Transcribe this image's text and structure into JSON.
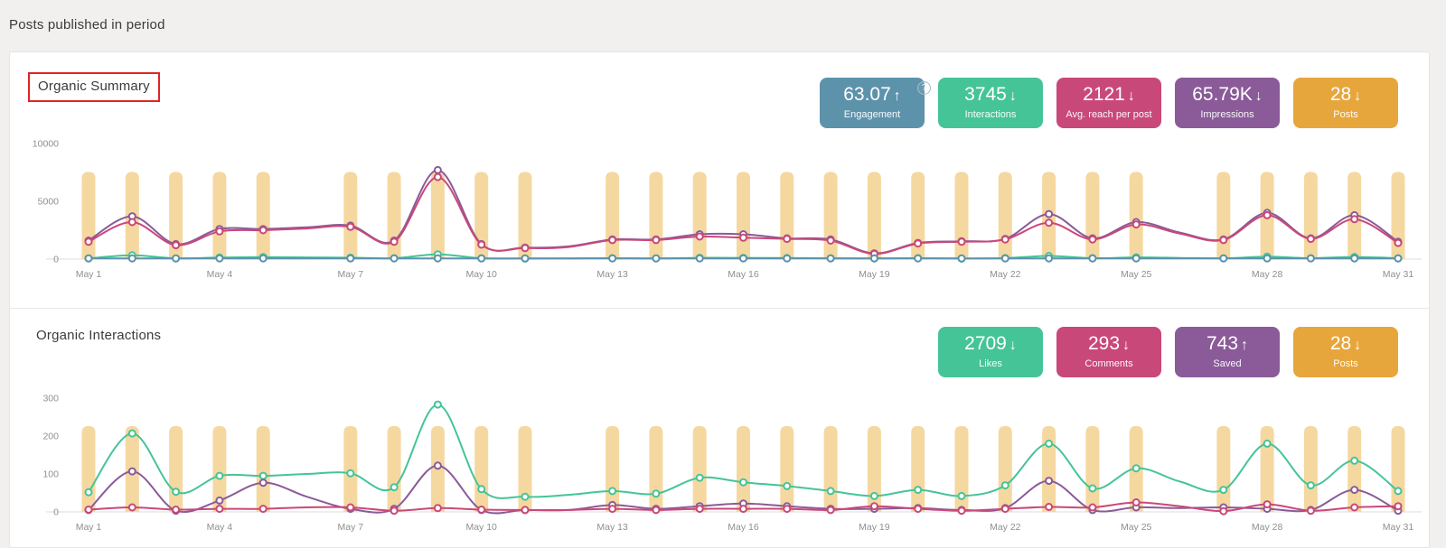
{
  "page": {
    "title": "Posts published in period"
  },
  "icons": {
    "help": "?",
    "trend_up": "↑",
    "trend_down": "↓"
  },
  "colors": {
    "blue": "#5d92ab",
    "green": "#45c498",
    "pink": "#c9487a",
    "purple": "#8a5b98",
    "orange": "#e7a63c",
    "bar": "#f5d8a0",
    "annotation": "#e02424",
    "axis": "#dddddb",
    "tick_text": "#8f8f8f"
  },
  "sections": [
    {
      "title": "Organic Summary",
      "highlighted": true,
      "kpis": [
        {
          "value": "63.07",
          "arrow": "↑",
          "label": "Engagement",
          "color": "blue",
          "help": true
        },
        {
          "value": "3745",
          "arrow": "↓",
          "label": "Interactions",
          "color": "green"
        },
        {
          "value": "2121",
          "arrow": "↓",
          "label": "Avg. reach per post",
          "color": "pink"
        },
        {
          "value": "65.79K",
          "arrow": "↓",
          "label": "Impressions",
          "color": "purple"
        },
        {
          "value": "28",
          "arrow": "↓",
          "label": "Posts",
          "color": "orange"
        }
      ]
    },
    {
      "title": "Organic Interactions",
      "highlighted": false,
      "kpis": [
        {
          "value": "2709",
          "arrow": "↓",
          "label": "Likes",
          "color": "green"
        },
        {
          "value": "293",
          "arrow": "↓",
          "label": "Comments",
          "color": "pink"
        },
        {
          "value": "743",
          "arrow": "↑",
          "label": "Saved",
          "color": "purple"
        },
        {
          "value": "28",
          "arrow": "↓",
          "label": "Posts",
          "color": "orange"
        }
      ]
    }
  ],
  "chart_data": [
    {
      "type": "line+bar",
      "title": "Organic Summary",
      "ylim": [
        0,
        10000
      ],
      "yticks": [
        0,
        5000,
        10000
      ],
      "grid": false,
      "tick_every": 3,
      "x_labels": [
        "May 1",
        "May 2",
        "May 3",
        "May 4",
        "May 5",
        "May 6",
        "May 7",
        "May 8",
        "May 9",
        "May 10",
        "May 11",
        "May 12",
        "May 13",
        "May 14",
        "May 15",
        "May 16",
        "May 17",
        "May 18",
        "May 19",
        "May 20",
        "May 21",
        "May 22",
        "May 23",
        "May 24",
        "May 25",
        "May 26",
        "May 27",
        "May 28",
        "May 29",
        "May 30",
        "May 31"
      ],
      "bars": {
        "label": "Posts",
        "posts_per_day": 1,
        "days_with_posts": [
          1,
          2,
          3,
          4,
          5,
          7,
          8,
          9,
          10,
          11,
          13,
          14,
          15,
          16,
          17,
          18,
          19,
          20,
          21,
          22,
          23,
          24,
          25,
          27,
          28,
          29,
          30,
          31
        ],
        "bar_height_frac": 0.755
      },
      "series": [
        {
          "name": "Impressions",
          "color_key": "purple",
          "values": [
            1600,
            3700,
            1300,
            2600,
            2600,
            2750,
            2900,
            1600,
            7700,
            1300,
            1000,
            1100,
            1700,
            1700,
            2150,
            2150,
            1800,
            1700,
            500,
            1400,
            1550,
            1750,
            3900,
            1800,
            3200,
            2300,
            1700,
            4000,
            1800,
            3800,
            1500
          ]
        },
        {
          "name": "Reach",
          "color_key": "pink",
          "values": [
            1500,
            3200,
            1200,
            2400,
            2500,
            2650,
            2800,
            1500,
            7100,
            1250,
            950,
            1050,
            1650,
            1650,
            1950,
            1850,
            1750,
            1600,
            450,
            1350,
            1500,
            1700,
            3150,
            1700,
            3000,
            2200,
            1650,
            3800,
            1750,
            3450,
            1400
          ]
        },
        {
          "name": "Interactions",
          "color_key": "green",
          "values": [
            63,
            326,
            62,
            133,
            180,
            152,
            122,
            76,
            415,
            71,
            50,
            55,
            81,
            61,
            113,
            108,
            91,
            68,
            65,
            76,
            50,
            88,
            275,
            79,
            152,
            105,
            72,
            208,
            78,
            189,
            73
          ]
        },
        {
          "name": "Engagement",
          "color_key": "blue",
          "values": [
            63,
            63,
            63,
            63,
            63,
            63,
            63,
            63,
            63,
            63,
            63,
            63,
            63,
            63,
            63,
            63,
            63,
            63,
            63,
            63,
            63,
            63,
            63,
            63,
            63,
            63,
            63,
            63,
            63,
            63,
            63
          ]
        }
      ]
    },
    {
      "type": "line+bar",
      "title": "Organic Interactions",
      "ylim": [
        0,
        300
      ],
      "yticks": [
        0,
        100,
        200,
        300
      ],
      "grid": false,
      "tick_every": 3,
      "x_labels": [
        "May 1",
        "May 2",
        "May 3",
        "May 4",
        "May 5",
        "May 6",
        "May 7",
        "May 8",
        "May 9",
        "May 10",
        "May 11",
        "May 12",
        "May 13",
        "May 14",
        "May 15",
        "May 16",
        "May 17",
        "May 18",
        "May 19",
        "May 20",
        "May 21",
        "May 22",
        "May 23",
        "May 24",
        "May 25",
        "May 26",
        "May 27",
        "May 28",
        "May 29",
        "May 30",
        "May 31"
      ],
      "bars": {
        "label": "Posts",
        "posts_per_day": 1,
        "days_with_posts": [
          1,
          2,
          3,
          4,
          5,
          7,
          8,
          9,
          10,
          11,
          13,
          14,
          15,
          16,
          17,
          18,
          19,
          20,
          21,
          22,
          23,
          24,
          25,
          27,
          28,
          29,
          30,
          31
        ],
        "bar_height_frac": 0.755
      },
      "series": [
        {
          "name": "Likes",
          "color_key": "green",
          "values": [
            52,
            207,
            53,
            95,
            95,
            100,
            102,
            65,
            283,
            60,
            40,
            45,
            55,
            48,
            90,
            78,
            68,
            55,
            42,
            58,
            42,
            70,
            180,
            62,
            115,
            80,
            58,
            180,
            70,
            135,
            55
          ]
        },
        {
          "name": "Saved",
          "color_key": "purple",
          "values": [
            5,
            107,
            3,
            30,
            77,
            40,
            8,
            8,
            122,
            5,
            5,
            5,
            18,
            8,
            15,
            22,
            15,
            8,
            8,
            10,
            5,
            10,
            82,
            5,
            12,
            10,
            12,
            8,
            5,
            58,
            3
          ]
        },
        {
          "name": "Comments",
          "color_key": "pink",
          "values": [
            6,
            12,
            6,
            8,
            8,
            12,
            12,
            3,
            10,
            6,
            5,
            5,
            8,
            5,
            8,
            8,
            8,
            5,
            15,
            8,
            3,
            8,
            13,
            12,
            25,
            15,
            2,
            20,
            3,
            12,
            15
          ]
        }
      ]
    }
  ]
}
